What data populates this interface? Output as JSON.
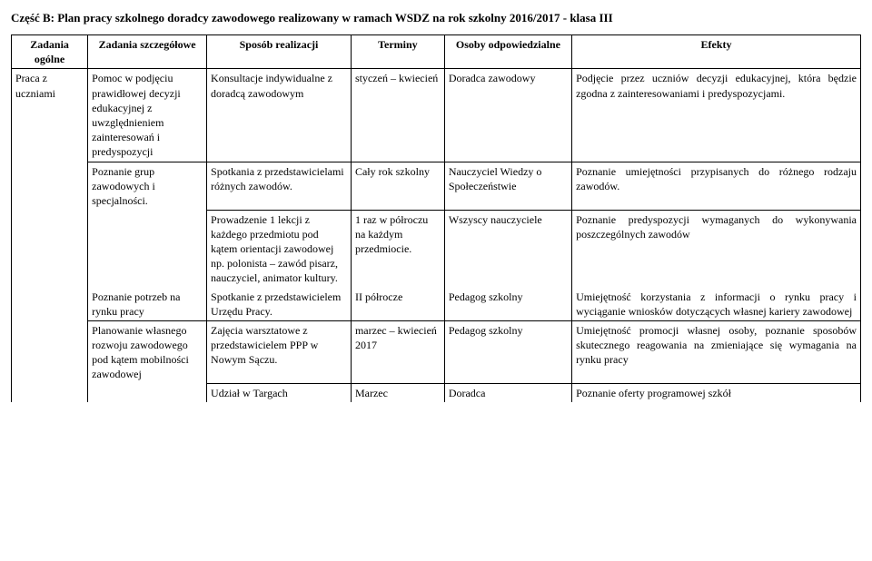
{
  "title": "Część B: Plan pracy szkolnego doradcy zawodowego realizowany w ramach WSDZ na rok szkolny 2016/2017 - klasa III",
  "headers": {
    "c0": "Zadania ogólne",
    "c1": "Zadania szczegółowe",
    "c2": "Sposób realizacji",
    "c3": "Terminy",
    "c4": "Osoby odpowiedzialne",
    "c5": "Efekty"
  },
  "rows": [
    {
      "c0": "Praca z uczniami",
      "c1": "Pomoc w podjęciu prawidłowej decyzji edukacyjnej z uwzględnieniem zainteresowań i predyspozycji",
      "c2": "Konsultacje indywidualne z doradcą zawodowym",
      "c3": "styczeń – kwiecień",
      "c4": "Doradca zawodowy",
      "c5": "Podjęcie przez uczniów decyzji edukacyjnej, która będzie zgodna z zainteresowaniami i predyspozycjami."
    },
    {
      "c1": "Poznanie grup zawodowych i specjalności.",
      "c2": "Spotkania z przedstawicielami różnych zawodów.",
      "c3": "Cały rok szkolny",
      "c4": "Nauczyciel Wiedzy o Społeczeństwie",
      "c5": "Poznanie umiejętności przypisanych do różnego rodzaju zawodów."
    },
    {
      "c1": "",
      "c2": "Prowadzenie 1 lekcji z każdego przedmiotu pod kątem orientacji zawodowej np. polonista – zawód pisarz, nauczyciel, animator kultury.",
      "c3": "1 raz w półroczu na każdym przedmiocie.",
      "c4": "Wszyscy nauczyciele",
      "c5": "Poznanie predyspozycji wymaganych do wykonywania poszczególnych zawodów"
    },
    {
      "c1": "Poznanie potrzeb na rynku pracy",
      "c2": "Spotkanie z przedstawicielem Urzędu Pracy.",
      "c3": "II półrocze",
      "c4": "Pedagog szkolny",
      "c5": "Umiejętność korzystania z informacji o rynku pracy i wyciąganie wniosków dotyczących własnej kariery zawodowej"
    },
    {
      "c1": "Planowanie własnego rozwoju zawodowego pod kątem mobilności zawodowej",
      "c2": "Zajęcia warsztatowe z przedstawicielem PPP w Nowym Sączu.",
      "c3": "marzec – kwiecień 2017",
      "c4": "Pedagog szkolny",
      "c5": "Umiejętność promocji własnej osoby, poznanie sposobów skutecznego reagowania na zmieniające się wymagania na rynku pracy"
    },
    {
      "c2": "Udział w Targach",
      "c3": "Marzec",
      "c4": "Doradca",
      "c5": "Poznanie oferty programowej szkół"
    }
  ]
}
